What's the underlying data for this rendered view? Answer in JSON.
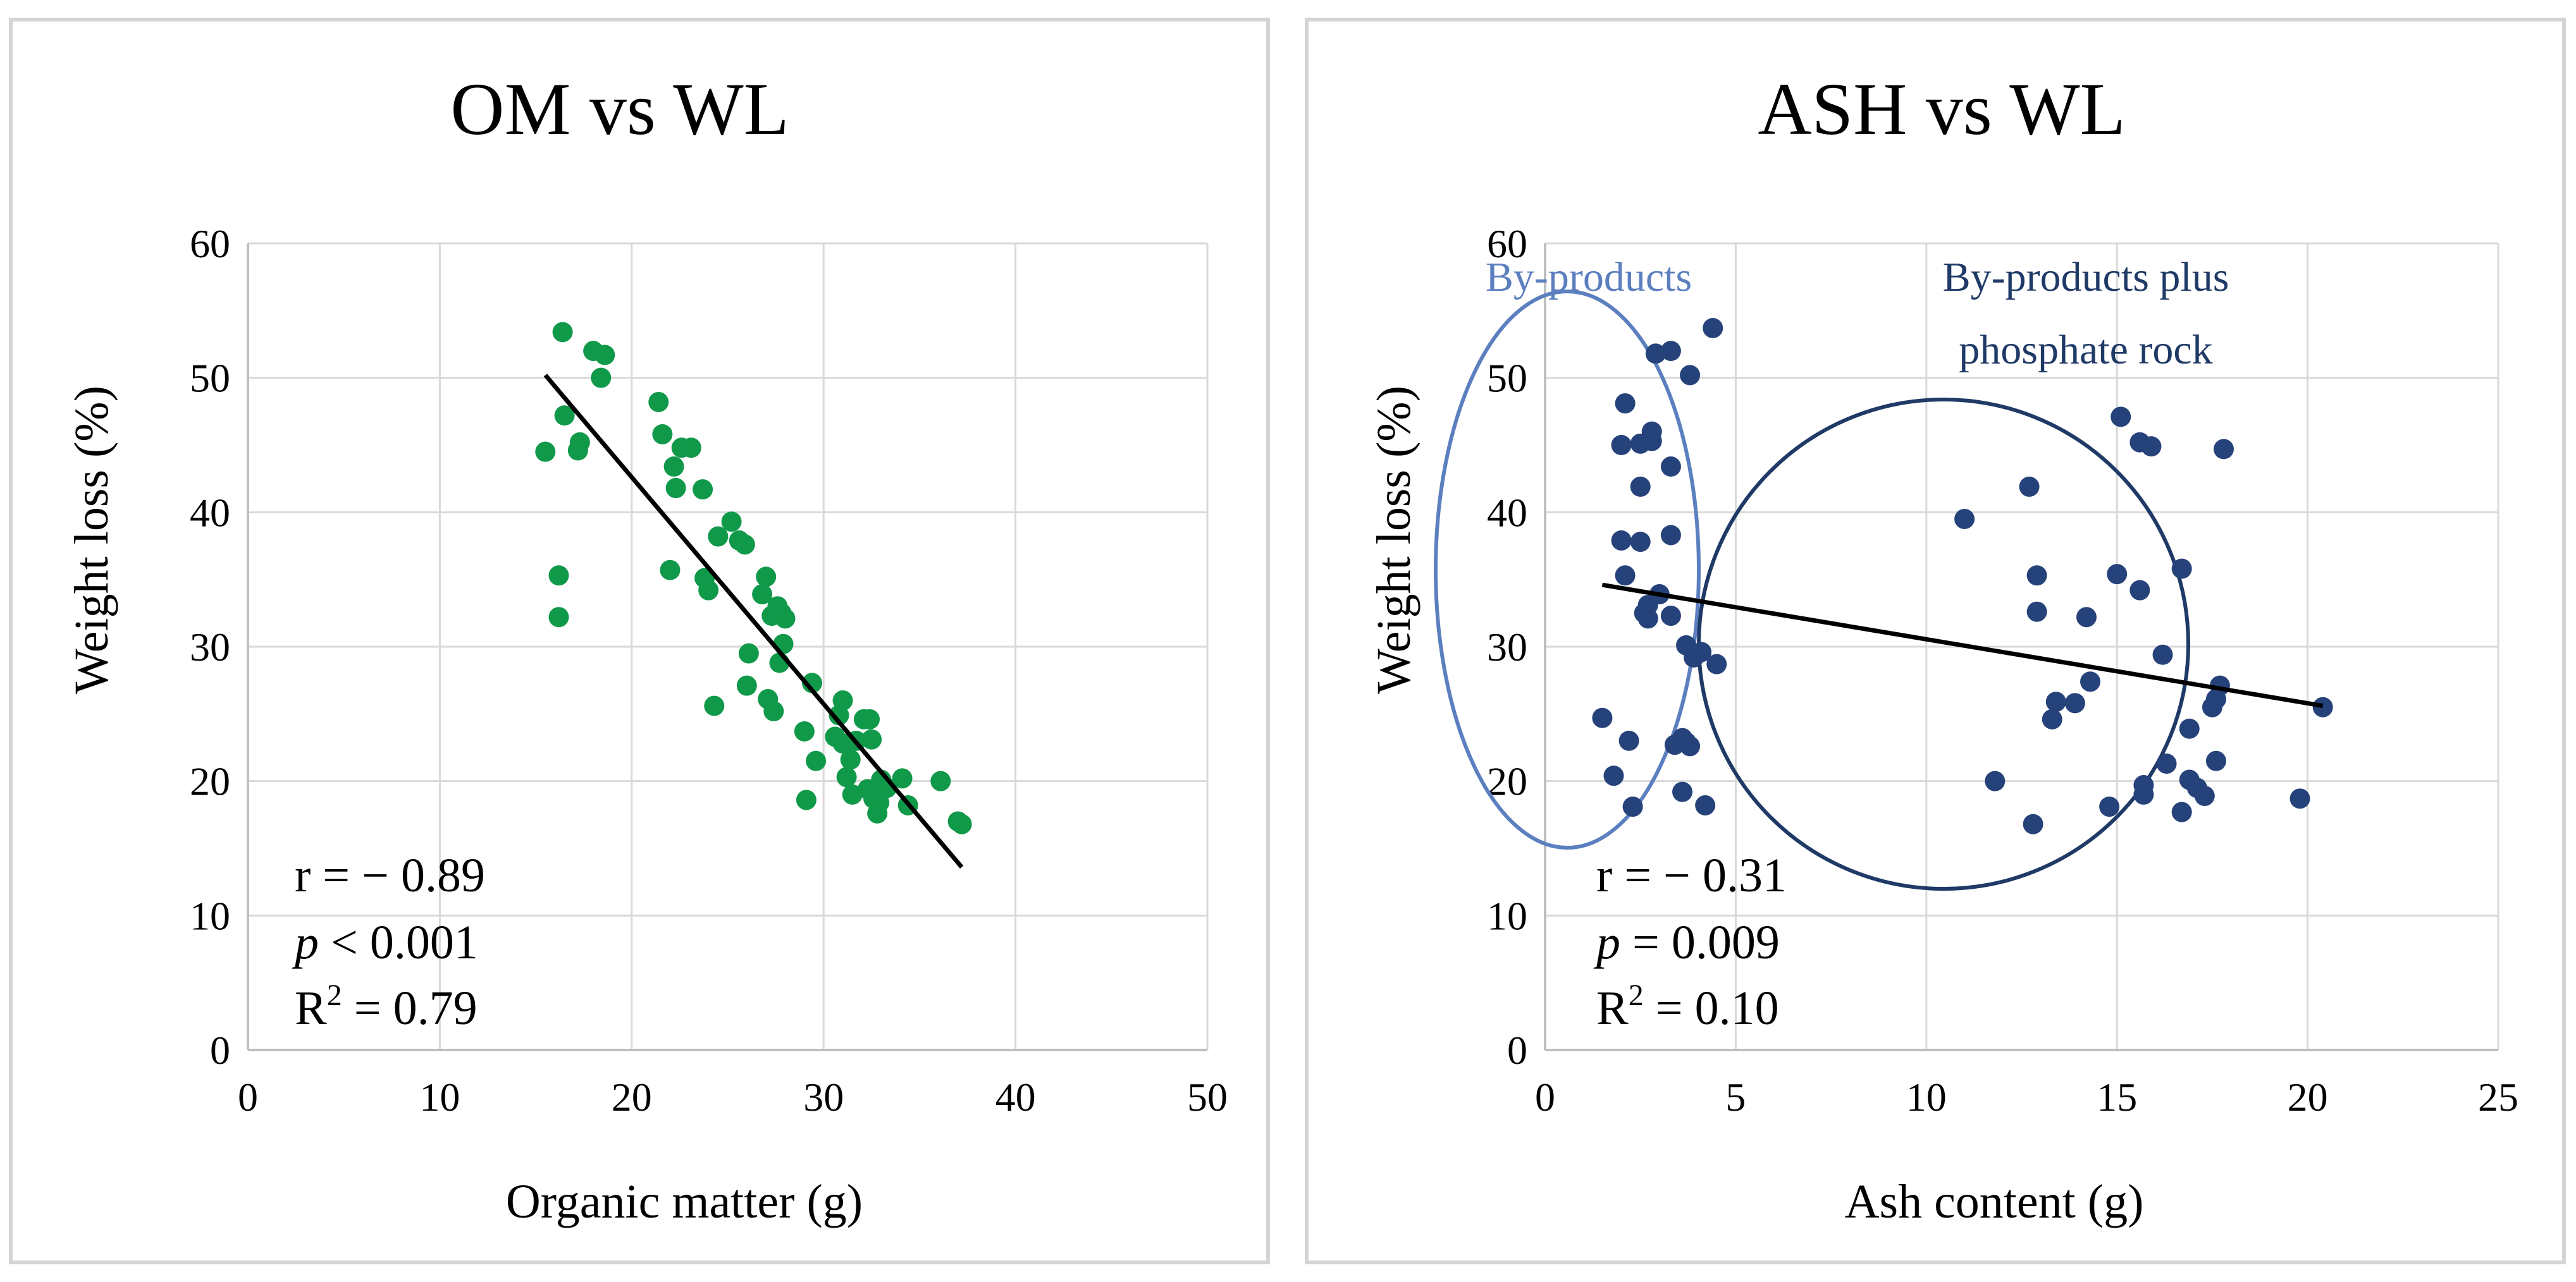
{
  "colors": {
    "om_points": "#11994a",
    "ash_points": "#26427a",
    "trend": "#000000",
    "grid": "#d9d9d9",
    "panel_border": "#d4d4d4",
    "byproducts_ellipse": "#5b7fbf",
    "phosphate_circle": "#1f3a66"
  },
  "chart_data": [
    {
      "type": "scatter",
      "title": "OM vs WL",
      "xlabel": "Organic matter (g)",
      "ylabel": "Weight loss (%)",
      "xlim": [
        0,
        50
      ],
      "ylim": [
        0,
        60
      ],
      "xticks": [
        "0",
        "10",
        "20",
        "30",
        "40",
        "50"
      ],
      "yticks": [
        "0",
        "10",
        "20",
        "30",
        "40",
        "50",
        "60"
      ],
      "grid": true,
      "stats": {
        "r": "r = − 0.89",
        "p_symbol": "p",
        "p_rest": " < 0.001",
        "r2_prefix": "R",
        "r2_sup": "2",
        "r2_rest": " = 0.79"
      },
      "trendline": {
        "x": [
          15.5,
          37.2
        ],
        "y": [
          50.2,
          13.6
        ]
      },
      "points": [
        [
          15.5,
          44.5
        ],
        [
          16.4,
          53.4
        ],
        [
          16.5,
          47.2
        ],
        [
          16.2,
          35.3
        ],
        [
          16.2,
          32.2
        ],
        [
          17.2,
          44.6
        ],
        [
          17.3,
          45.2
        ],
        [
          18.0,
          52.0
        ],
        [
          18.6,
          51.7
        ],
        [
          18.4,
          50.0
        ],
        [
          21.4,
          48.2
        ],
        [
          21.6,
          45.8
        ],
        [
          22.0,
          35.7
        ],
        [
          22.2,
          43.4
        ],
        [
          22.3,
          41.8
        ],
        [
          22.6,
          44.8
        ],
        [
          23.1,
          44.8
        ],
        [
          23.7,
          41.7
        ],
        [
          23.8,
          35.1
        ],
        [
          24.0,
          34.2
        ],
        [
          24.3,
          25.6
        ],
        [
          24.5,
          38.2
        ],
        [
          25.2,
          39.3
        ],
        [
          25.6,
          37.9
        ],
        [
          25.9,
          37.6
        ],
        [
          26.0,
          27.1
        ],
        [
          26.1,
          29.5
        ],
        [
          26.8,
          33.9
        ],
        [
          27.0,
          35.2
        ],
        [
          27.1,
          26.1
        ],
        [
          27.3,
          32.3
        ],
        [
          27.4,
          25.2
        ],
        [
          27.6,
          33.0
        ],
        [
          27.8,
          32.5
        ],
        [
          27.9,
          30.2
        ],
        [
          27.7,
          28.8
        ],
        [
          28.0,
          32.1
        ],
        [
          29.0,
          23.7
        ],
        [
          29.1,
          18.6
        ],
        [
          29.4,
          27.3
        ],
        [
          29.6,
          21.5
        ],
        [
          30.6,
          23.3
        ],
        [
          30.8,
          24.9
        ],
        [
          31.0,
          22.8
        ],
        [
          31.0,
          26.0
        ],
        [
          31.2,
          20.3
        ],
        [
          31.4,
          21.6
        ],
        [
          31.5,
          19.0
        ],
        [
          31.7,
          23.0
        ],
        [
          32.1,
          24.6
        ],
        [
          32.4,
          24.6
        ],
        [
          32.5,
          23.1
        ],
        [
          32.3,
          19.4
        ],
        [
          32.6,
          18.7
        ],
        [
          32.8,
          17.6
        ],
        [
          32.9,
          18.4
        ],
        [
          33.0,
          20.1
        ],
        [
          33.3,
          19.5
        ],
        [
          34.1,
          20.2
        ],
        [
          34.4,
          18.2
        ],
        [
          36.1,
          20.0
        ],
        [
          37.0,
          17.0
        ],
        [
          37.2,
          16.8
        ]
      ]
    },
    {
      "type": "scatter",
      "title": "ASH vs WL",
      "xlabel": "Ash content (g)",
      "ylabel": "Weight loss (%)",
      "xlim": [
        0,
        25
      ],
      "ylim": [
        0,
        60
      ],
      "xticks": [
        "0",
        "5",
        "10",
        "15",
        "20",
        "25"
      ],
      "yticks": [
        "0",
        "10",
        "20",
        "30",
        "40",
        "50",
        "60"
      ],
      "grid": true,
      "stats": {
        "r": "r = − 0.31",
        "p_symbol": "p",
        "p_rest": " = 0.009",
        "r2_prefix": "R",
        "r2_sup": "2",
        "r2_rest": " = 0.10"
      },
      "trendline": {
        "x": [
          1.5,
          20.4
        ],
        "y": [
          34.6,
          25.6
        ]
      },
      "annotations": {
        "byproducts": "By-products",
        "phosphate_line1": "By-products plus",
        "phosphate_line2": "phosphate rock"
      },
      "points": [
        [
          1.5,
          24.7
        ],
        [
          1.8,
          20.4
        ],
        [
          2.0,
          45.0
        ],
        [
          2.1,
          48.1
        ],
        [
          2.0,
          37.9
        ],
        [
          2.1,
          35.3
        ],
        [
          2.2,
          23.0
        ],
        [
          2.3,
          18.1
        ],
        [
          2.5,
          41.9
        ],
        [
          2.5,
          37.8
        ],
        [
          2.5,
          45.1
        ],
        [
          2.6,
          32.5
        ],
        [
          2.7,
          32.1
        ],
        [
          2.7,
          33.1
        ],
        [
          2.8,
          46.0
        ],
        [
          2.8,
          45.3
        ],
        [
          2.9,
          51.8
        ],
        [
          3.0,
          33.9
        ],
        [
          3.3,
          52.0
        ],
        [
          3.3,
          43.4
        ],
        [
          3.3,
          38.3
        ],
        [
          3.3,
          32.3
        ],
        [
          3.4,
          22.7
        ],
        [
          3.6,
          19.2
        ],
        [
          3.7,
          30.1
        ],
        [
          3.7,
          22.9
        ],
        [
          3.8,
          50.2
        ],
        [
          3.8,
          22.6
        ],
        [
          3.9,
          29.2
        ],
        [
          3.6,
          23.2
        ],
        [
          4.1,
          29.6
        ],
        [
          4.2,
          18.2
        ],
        [
          4.4,
          53.7
        ],
        [
          4.5,
          28.7
        ],
        [
          11.0,
          39.5
        ],
        [
          11.8,
          20.0
        ],
        [
          12.7,
          41.9
        ],
        [
          12.8,
          16.8
        ],
        [
          12.9,
          35.3
        ],
        [
          12.9,
          32.6
        ],
        [
          13.3,
          24.6
        ],
        [
          13.4,
          25.9
        ],
        [
          13.9,
          25.8
        ],
        [
          14.3,
          27.4
        ],
        [
          14.2,
          32.2
        ],
        [
          14.8,
          18.1
        ],
        [
          15.0,
          35.4
        ],
        [
          15.1,
          47.1
        ],
        [
          15.6,
          34.2
        ],
        [
          15.6,
          45.2
        ],
        [
          15.7,
          19.0
        ],
        [
          15.7,
          19.7
        ],
        [
          15.9,
          44.9
        ],
        [
          16.2,
          29.4
        ],
        [
          16.3,
          21.3
        ],
        [
          16.7,
          17.7
        ],
        [
          16.7,
          35.8
        ],
        [
          16.9,
          23.9
        ],
        [
          16.9,
          20.1
        ],
        [
          17.1,
          19.5
        ],
        [
          17.3,
          18.9
        ],
        [
          17.5,
          25.5
        ],
        [
          17.6,
          21.5
        ],
        [
          17.6,
          26.1
        ],
        [
          17.7,
          27.1
        ],
        [
          17.8,
          44.7
        ],
        [
          19.8,
          18.7
        ],
        [
          20.4,
          25.5
        ]
      ]
    }
  ]
}
